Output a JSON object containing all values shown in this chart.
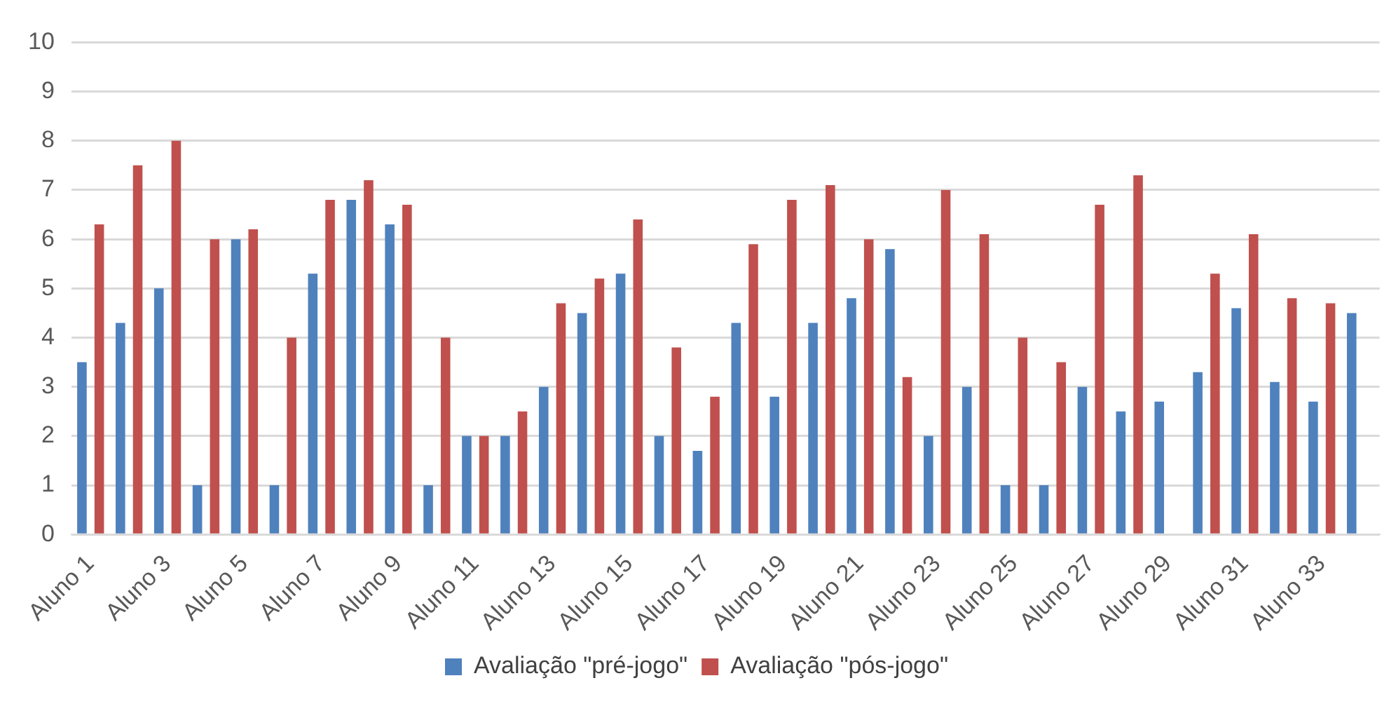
{
  "chart_data": {
    "type": "bar",
    "categories": [
      "Aluno 1",
      null,
      "Aluno 3",
      null,
      "Aluno 5",
      null,
      "Aluno 7",
      null,
      "Aluno 9",
      null,
      "Aluno 11",
      null,
      "Aluno 13",
      null,
      "Aluno 15",
      null,
      "Aluno 17",
      null,
      "Aluno 19",
      null,
      "Aluno 21",
      null,
      "Aluno 23",
      null,
      "Aluno 25",
      null,
      "Aluno 27",
      null,
      "Aluno 29",
      null,
      "Aluno 31",
      null,
      "Aluno 33",
      null
    ],
    "series": [
      {
        "name": "Avaliação \"pré-jogo\"",
        "color": "#4f81bd",
        "values": [
          3.5,
          4.3,
          5,
          1,
          6,
          1,
          5.3,
          6.8,
          6.3,
          1,
          2,
          2,
          3,
          4.5,
          5.3,
          2,
          1.7,
          4.3,
          2.8,
          4.3,
          4.8,
          5.8,
          2,
          3,
          1,
          1,
          3,
          2.5,
          2.7,
          3.3,
          4.6,
          3.1,
          2.7,
          4.5
        ]
      },
      {
        "name": "Avaliação \"pós-jogo\"",
        "color": "#c0504d",
        "values": [
          6.3,
          7.5,
          8,
          6,
          6.2,
          4,
          6.8,
          7.2,
          6.7,
          4,
          2,
          2.5,
          4.7,
          5.2,
          6.4,
          3.8,
          2.8,
          5.9,
          6.8,
          7.1,
          6,
          3.2,
          7,
          6.1,
          4,
          3.5,
          6.7,
          7.3,
          null,
          5.3,
          6.1,
          4.8,
          4.7,
          null
        ]
      }
    ],
    "ylim": [
      0,
      10
    ],
    "yticks": [
      0,
      1,
      2,
      3,
      4,
      5,
      6,
      7,
      8,
      9,
      10
    ],
    "grid": "y",
    "legend": "bottom"
  }
}
